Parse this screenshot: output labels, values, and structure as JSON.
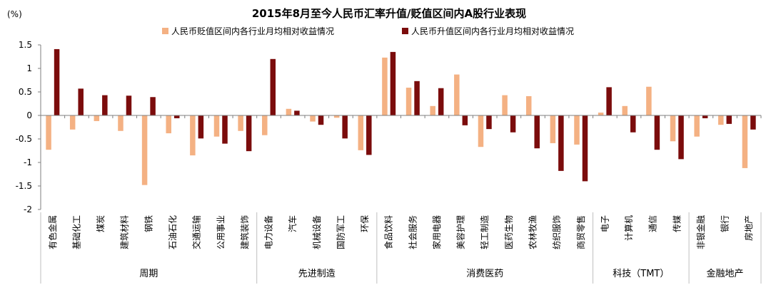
{
  "chart_data": {
    "type": "bar",
    "title": "2015年8月至今人民币汇率升值/贬值区间内A股行业表现",
    "ylabel": "(%)",
    "xlabel": "",
    "ylim": [
      -2,
      1.5
    ],
    "yticks": [
      "1.5",
      "1",
      "0.5",
      "0",
      "-0.5",
      "-1",
      "-1.5",
      "-2"
    ],
    "ytick_values": [
      1.5,
      1,
      0.5,
      0,
      -0.5,
      -1,
      -1.5,
      -2
    ],
    "grid": false,
    "legend_position": "top-center",
    "categories": [
      "有色金属",
      "基础化工",
      "煤炭",
      "建筑材料",
      "钢铁",
      "石油石化",
      "交通运输",
      "公用事业",
      "建筑装饰",
      "电力设备",
      "汽车",
      "机械设备",
      "国防军工",
      "环保",
      "食品饮料",
      "社会服务",
      "家用电器",
      "美容护理",
      "轻工制造",
      "医药生物",
      "农林牧渔",
      "纺织服饰",
      "商贸零售",
      "电子",
      "计算机",
      "通信",
      "传媒",
      "非银金融",
      "银行",
      "房地产"
    ],
    "series": [
      {
        "name": "人民币贬值区间内各行业月均相对收益情况",
        "color": "#F4B183",
        "values": [
          -0.73,
          -0.3,
          -0.12,
          -0.33,
          -1.48,
          -0.38,
          -0.85,
          -0.45,
          -0.33,
          -0.42,
          0.14,
          -0.13,
          -0.05,
          -0.74,
          1.23,
          0.59,
          0.2,
          0.87,
          -0.67,
          0.43,
          0.41,
          -0.59,
          -0.62,
          0.06,
          0.2,
          0.61,
          -0.55,
          -0.45,
          -0.2,
          -1.12
        ]
      },
      {
        "name": "人民币升值区间内各行业月均相对收益情况",
        "color": "#7B0C0C",
        "values": [
          1.41,
          0.57,
          0.43,
          0.42,
          0.39,
          -0.06,
          -0.49,
          -0.6,
          -0.76,
          1.2,
          0.1,
          -0.2,
          -0.49,
          -0.84,
          1.35,
          0.73,
          0.58,
          -0.21,
          -0.29,
          -0.36,
          -0.7,
          -1.18,
          -1.4,
          0.6,
          -0.36,
          -0.73,
          -0.93,
          -0.06,
          -0.18,
          -0.3
        ]
      }
    ],
    "groups": [
      {
        "name": "周期",
        "size": 9
      },
      {
        "name": "先进制造",
        "size": 5
      },
      {
        "name": "消费医药",
        "size": 9
      },
      {
        "name": "科技（TMT）",
        "size": 4
      },
      {
        "name": "金融地产",
        "size": 3
      }
    ]
  }
}
